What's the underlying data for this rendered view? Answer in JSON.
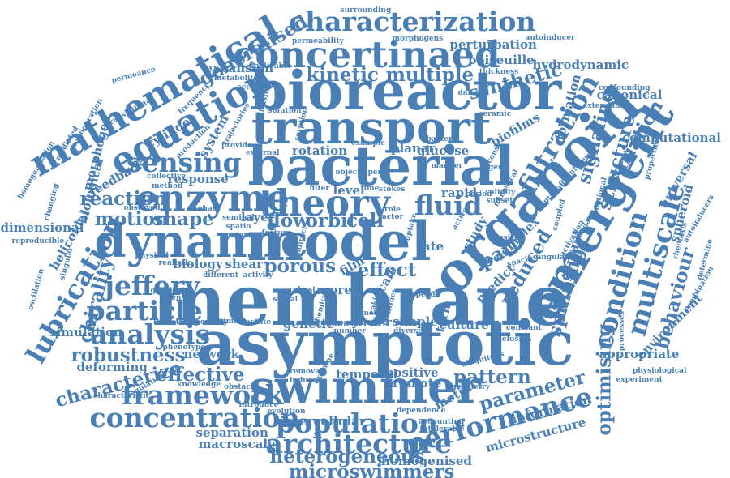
{
  "color": "#4a7fb5",
  "words": [
    {
      "text": "membrane",
      "weight": 9,
      "rot": 0
    },
    {
      "text": "asymptotic",
      "weight": 8,
      "rot": 0
    },
    {
      "text": "bioreactor",
      "weight": 7,
      "rot": 0
    },
    {
      "text": "bacterial",
      "weight": 7,
      "rot": 0
    },
    {
      "text": "organoid",
      "weight": 7,
      "rot": -45
    },
    {
      "text": "model",
      "weight": 7,
      "rot": 0
    },
    {
      "text": "transport",
      "weight": 6,
      "rot": 0
    },
    {
      "text": "dynamic",
      "weight": 6,
      "rot": 0
    },
    {
      "text": "emergent",
      "weight": 6,
      "rot": -60
    },
    {
      "text": "swimmer",
      "weight": 6,
      "rot": 0
    },
    {
      "text": "theory",
      "weight": 5,
      "rot": 0
    },
    {
      "text": "enzyme",
      "weight": 5,
      "rot": 0
    },
    {
      "text": "concertinaed",
      "weight": 5,
      "rot": 0
    },
    {
      "text": "equation",
      "weight": 5,
      "rot": -30
    },
    {
      "text": "mathematical",
      "weight": 5,
      "rot": -30
    },
    {
      "text": "characterization",
      "weight": 4,
      "rot": 0
    },
    {
      "text": "population",
      "weight": 4,
      "rot": 0
    },
    {
      "text": "condition",
      "weight": 4,
      "rot": -75
    },
    {
      "text": "multiscale",
      "weight": 4,
      "rot": -75
    },
    {
      "text": "filtration",
      "weight": 4,
      "rot": -60
    },
    {
      "text": "sensing",
      "weight": 4,
      "rot": 0
    },
    {
      "text": "particle",
      "weight": 4,
      "rot": 0
    },
    {
      "text": "analysis",
      "weight": 4,
      "rot": 0
    },
    {
      "text": "concentration",
      "weight": 4,
      "rot": 0
    },
    {
      "text": "architecture",
      "weight": 4,
      "rot": 0
    },
    {
      "text": "performance",
      "weight": 4,
      "rot": -15
    },
    {
      "text": "framework",
      "weight": 4,
      "rot": 0
    },
    {
      "text": "lubrication",
      "weight": 4,
      "rot": -60
    },
    {
      "text": "jeffery",
      "weight": 4,
      "rot": 0
    },
    {
      "text": "fluid",
      "weight": 4,
      "rot": 0
    },
    {
      "text": "flow",
      "weight": 3,
      "rot": 0
    },
    {
      "text": "kinetic",
      "weight": 3,
      "rot": 0
    },
    {
      "text": "multiple",
      "weight": 3,
      "rot": 0
    },
    {
      "text": "reaction",
      "weight": 3,
      "rot": 0
    },
    {
      "text": "motion",
      "weight": 3,
      "rot": 0
    },
    {
      "text": "shape",
      "weight": 3,
      "rot": 0
    },
    {
      "text": "orbit",
      "weight": 3,
      "rot": 0
    },
    {
      "text": "cell",
      "weight": 3,
      "rot": 0
    },
    {
      "text": "reduced",
      "weight": 3,
      "rot": -60
    },
    {
      "text": "structure",
      "weight": 3,
      "rot": -75
    },
    {
      "text": "generalised",
      "weight": 3,
      "rot": -30
    },
    {
      "text": "synthetic",
      "weight": 3,
      "rot": -15
    },
    {
      "text": "pattern",
      "weight": 3,
      "rot": 0
    },
    {
      "text": "parameter",
      "weight": 3,
      "rot": -15
    },
    {
      "text": "effective",
      "weight": 3,
      "rot": 0
    },
    {
      "text": "robustness",
      "weight": 3,
      "rot": 0
    },
    {
      "text": "heterogeneous",
      "weight": 3,
      "rot": 0
    },
    {
      "text": "microswimmers",
      "weight": 3,
      "rot": 0
    },
    {
      "text": "porous",
      "weight": 3,
      "rot": 0
    },
    {
      "text": "effect",
      "weight": 3,
      "rot": 0
    },
    {
      "text": "behaviour",
      "weight": 3,
      "rot": -75
    },
    {
      "text": "signaling",
      "weight": 3,
      "rot": -75
    },
    {
      "text": "optimising",
      "weight": 3,
      "rot": -90
    },
    {
      "text": "spinning",
      "weight": 3,
      "rot": -75
    },
    {
      "text": "chirality",
      "weight": 3,
      "rot": -75
    },
    {
      "text": "characterize",
      "weight": 3,
      "rot": -15
    },
    {
      "text": "part",
      "weight": 3,
      "rot": -30
    },
    {
      "text": "variation",
      "weight": 3,
      "rot": -60
    },
    {
      "text": "general",
      "weight": 2,
      "rot": -75
    },
    {
      "text": "motility",
      "weight": 2,
      "rot": -30
    },
    {
      "text": "perturbation",
      "weight": 2,
      "rot": 0
    },
    {
      "text": "poiseuille",
      "weight": 2,
      "rot": 0
    },
    {
      "text": "hydrodynamic",
      "weight": 2,
      "rot": 0
    },
    {
      "text": "morphogen",
      "weight": 2,
      "rot": -75
    },
    {
      "text": "biology",
      "weight": 2,
      "rot": 0
    },
    {
      "text": "shear",
      "weight": 2,
      "rot": 0
    },
    {
      "text": "biofilms",
      "weight": 2,
      "rot": -30
    },
    {
      "text": "rotation",
      "weight": 2,
      "rot": 0
    },
    {
      "text": "planar",
      "weight": 2,
      "rot": 0
    },
    {
      "text": "glucose",
      "weight": 2,
      "rot": 0
    },
    {
      "text": "rapid",
      "weight": 2,
      "rot": 0
    },
    {
      "text": "study",
      "weight": 2,
      "rot": -60
    },
    {
      "text": "simple",
      "weight": 2,
      "rot": 0
    },
    {
      "text": "culture",
      "weight": 2,
      "rot": 0
    },
    {
      "text": "order",
      "weight": 2,
      "rot": 0
    },
    {
      "text": "genetic",
      "weight": 2,
      "rot": 0
    },
    {
      "text": "network",
      "weight": 2,
      "rot": 0
    },
    {
      "text": "temporal",
      "weight": 2,
      "rot": 0
    },
    {
      "text": "information",
      "weight": 2,
      "rot": -15
    },
    {
      "text": "microstructure",
      "weight": 2,
      "rot": -15
    },
    {
      "text": "homogenised",
      "weight": 2,
      "rot": 0
    },
    {
      "text": "separation",
      "weight": 2,
      "rot": 0
    },
    {
      "text": "macroscale",
      "weight": 2,
      "rot": 0
    },
    {
      "text": "intercellular",
      "weight": 2,
      "rot": 0
    },
    {
      "text": "response",
      "weight": 2,
      "rot": 0
    },
    {
      "text": "system",
      "weight": 2,
      "rot": -60
    },
    {
      "text": "simulation",
      "weight": 2,
      "rot": 0
    },
    {
      "text": "helicoidal",
      "weight": 2,
      "rot": -60
    },
    {
      "text": "dimensional",
      "weight": 2,
      "rot": 0
    },
    {
      "text": "feedback",
      "weight": 2,
      "rot": -30
    },
    {
      "text": "biological",
      "weight": 2,
      "rot": -75
    },
    {
      "text": "spheroid",
      "weight": 2,
      "rot": -75
    },
    {
      "text": "computational",
      "weight": 2,
      "rot": 0
    },
    {
      "text": "appropriate",
      "weight": 2,
      "rot": 0
    },
    {
      "text": "environment",
      "weight": 2,
      "rot": -45
    },
    {
      "text": "canonical",
      "weight": 2,
      "rot": 0
    },
    {
      "text": "universal",
      "weight": 2,
      "rot": -60
    },
    {
      "text": "level",
      "weight": 2,
      "rot": 0
    },
    {
      "text": "layer",
      "weight": 2,
      "rot": 0
    },
    {
      "text": "scale",
      "weight": 2,
      "rot": -60
    },
    {
      "text": "term",
      "weight": 2,
      "rot": -75
    },
    {
      "text": "predict",
      "weight": 2,
      "rot": -45
    },
    {
      "text": "complex",
      "weight": 2,
      "rot": -45
    },
    {
      "text": "expansion",
      "weight": 2,
      "rot": 0
    },
    {
      "text": "cylinder",
      "weight": 2,
      "rot": -30
    },
    {
      "text": "deforming",
      "weight": 2,
      "rot": 0
    },
    {
      "text": "positive",
      "weight": 2,
      "rot": 0
    },
    {
      "text": "promote",
      "weight": 2,
      "rot": 0
    },
    {
      "text": "lactate",
      "weight": 1,
      "rot": 0
    },
    {
      "text": "porosity",
      "weight": 1,
      "rot": 0
    },
    {
      "text": "levitation",
      "weight": 1,
      "rot": 0
    },
    {
      "text": "more",
      "weight": 2,
      "rot": 0
    },
    {
      "text": "robust",
      "weight": 1,
      "rot": 0
    },
    {
      "text": "film",
      "weight": 2,
      "rot": -30
    },
    {
      "text": "rate",
      "weight": 2,
      "rot": 0
    },
    {
      "text": "formation",
      "weight": 2,
      "rot": -75
    },
    {
      "text": "rheotaxis",
      "weight": 1,
      "rot": -75
    },
    {
      "text": "combination",
      "weight": 1,
      "rot": -60
    },
    {
      "text": "determine",
      "weight": 1,
      "rot": -75
    },
    {
      "text": "autoinducers",
      "weight": 1,
      "rot": -60
    },
    {
      "text": "physiological",
      "weight": 1,
      "rot": 0
    },
    {
      "text": "experiment",
      "weight": 1,
      "rot": 0
    },
    {
      "text": "processes",
      "weight": 1,
      "rot": -90
    },
    {
      "text": "constant",
      "weight": 1,
      "rot": 0
    },
    {
      "text": "inclusion",
      "weight": 1,
      "rot": 0
    },
    {
      "text": "confounding",
      "weight": 1,
      "rot": 0
    },
    {
      "text": "extendable",
      "weight": 1,
      "rot": 0
    },
    {
      "text": "numerical",
      "weight": 1,
      "rot": -60
    },
    {
      "text": "viscous",
      "weight": 1,
      "rot": -60
    },
    {
      "text": "properties",
      "weight": 1,
      "rot": -75
    },
    {
      "text": "quantifies",
      "weight": 1,
      "rot": -45
    },
    {
      "text": "functional",
      "weight": 1,
      "rot": -75
    },
    {
      "text": "standard",
      "weight": 1,
      "rot": -60
    },
    {
      "text": "coupled",
      "weight": 1,
      "rot": -75
    },
    {
      "text": "optimal",
      "weight": 1,
      "rot": -45
    },
    {
      "text": "passive",
      "weight": 1,
      "rot": 0
    },
    {
      "text": "spacing",
      "weight": 1,
      "rot": -15
    },
    {
      "text": "angular",
      "weight": 1,
      "rot": 0
    },
    {
      "text": "activation",
      "weight": 1,
      "rot": -60
    },
    {
      "text": "oscillation",
      "weight": 1,
      "rot": -75
    },
    {
      "text": "singular",
      "weight": 1,
      "rot": -75
    },
    {
      "text": "reproducible",
      "weight": 1,
      "rot": 0
    },
    {
      "text": "homogenisation",
      "weight": 1,
      "rot": -60
    },
    {
      "text": "changing",
      "weight": 1,
      "rot": -75
    },
    {
      "text": "mediated",
      "weight": 1,
      "rot": -60
    },
    {
      "text": "configuration",
      "weight": 1,
      "rot": -60
    },
    {
      "text": "translational",
      "weight": 1,
      "rot": -30
    },
    {
      "text": "permeance",
      "weight": 1,
      "rot": -15
    },
    {
      "text": "permeability",
      "weight": 1,
      "rot": 0
    },
    {
      "text": "morphogens",
      "weight": 1,
      "rot": 0
    },
    {
      "text": "surrounding",
      "weight": 1,
      "rot": 0
    },
    {
      "text": "autoinducer",
      "weight": 1,
      "rot": 0
    },
    {
      "text": "applicable",
      "weight": 1,
      "rot": 0
    },
    {
      "text": "thickness",
      "weight": 1,
      "rot": 0
    },
    {
      "text": "dalwadi",
      "weight": 1,
      "rot": 0
    },
    {
      "text": "metabolite",
      "weight": 1,
      "rot": 0
    },
    {
      "text": "frequency",
      "weight": 1,
      "rot": -45
    },
    {
      "text": "diffusivity",
      "weight": 1,
      "rot": -75
    },
    {
      "text": "account",
      "weight": 1,
      "rot": 0
    },
    {
      "text": "trajectories",
      "weight": 1,
      "rot": -60
    },
    {
      "text": "production",
      "weight": 1,
      "rot": -45
    },
    {
      "text": "provide",
      "weight": 1,
      "rot": 0
    },
    {
      "text": "external",
      "weight": 1,
      "rot": 0
    },
    {
      "text": "sorption",
      "weight": 1,
      "rot": -75
    },
    {
      "text": "solution",
      "weight": 1,
      "rot": 0
    },
    {
      "text": "example",
      "weight": 1,
      "rot": 0
    },
    {
      "text": "ceramic",
      "weight": 1,
      "rot": 0
    },
    {
      "text": "bacteria",
      "weight": 1,
      "rot": 0
    },
    {
      "text": "manner",
      "weight": 1,
      "rot": 0
    },
    {
      "text": "gene",
      "weight": 1,
      "rot": 0
    },
    {
      "text": "validity",
      "weight": 1,
      "rot": 0
    },
    {
      "text": "subset",
      "weight": 1,
      "rot": 0
    },
    {
      "text": "period",
      "weight": 1,
      "rot": 0
    },
    {
      "text": "collective",
      "weight": 1,
      "rot": 0
    },
    {
      "text": "method",
      "weight": 1,
      "rot": 0
    },
    {
      "text": "domain",
      "weight": 1,
      "rot": 0
    },
    {
      "text": "observed",
      "weight": 1,
      "rot": 0
    },
    {
      "text": "physical",
      "weight": 1,
      "rot": 0
    },
    {
      "text": "realistic",
      "weight": 1,
      "rot": 0
    },
    {
      "text": "spatio",
      "weight": 1,
      "rot": 0
    },
    {
      "text": "context",
      "weight": 1,
      "rot": 0
    },
    {
      "text": "seminal",
      "weight": 1,
      "rot": 0
    },
    {
      "text": "feature",
      "weight": 1,
      "rot": 0
    },
    {
      "text": "filter",
      "weight": 1,
      "rot": 0
    },
    {
      "text": "time",
      "weight": 1,
      "rot": 0
    },
    {
      "text": "stokes",
      "weight": 1,
      "rot": 0
    },
    {
      "text": "object",
      "weight": 1,
      "rot": 0
    },
    {
      "text": "depend",
      "weight": 1,
      "rot": 0
    },
    {
      "text": "role",
      "weight": 1,
      "rot": 0
    },
    {
      "text": "factor",
      "weight": 1,
      "rot": 0
    },
    {
      "text": "indirect",
      "weight": 1,
      "rot": -75
    },
    {
      "text": "gradient",
      "weight": 1,
      "rot": 0
    },
    {
      "text": "density",
      "weight": 1,
      "rot": 0
    },
    {
      "text": "different",
      "weight": 1,
      "rot": 0
    },
    {
      "text": "activity",
      "weight": 1,
      "rot": 0
    },
    {
      "text": "primary",
      "weight": 1,
      "rot": 0
    },
    {
      "text": "signal",
      "weight": 1,
      "rot": 0
    },
    {
      "text": "phenotype",
      "weight": 1,
      "rot": 0
    },
    {
      "text": "regulation",
      "weight": 1,
      "rot": -30
    },
    {
      "text": "knowledge",
      "weight": 1,
      "rot": 0
    },
    {
      "text": "obstacle",
      "weight": 1,
      "rot": 0
    },
    {
      "text": "characteristic",
      "weight": 1,
      "rot": 0
    },
    {
      "text": "introduce",
      "weight": 1,
      "rot": 0
    },
    {
      "text": "induced",
      "weight": 1,
      "rot": 0
    },
    {
      "text": "removal",
      "weight": 1,
      "rot": 0
    },
    {
      "text": "examine",
      "weight": 1,
      "rot": -60
    },
    {
      "text": "evolution",
      "weight": 1,
      "rot": 0
    },
    {
      "text": "yawing",
      "weight": 1,
      "rot": 0
    },
    {
      "text": "number",
      "weight": 1,
      "rot": 0
    },
    {
      "text": "chemical",
      "weight": 1,
      "rot": -75
    },
    {
      "text": "caking",
      "weight": 1,
      "rot": -75
    },
    {
      "text": "identifies",
      "weight": 1,
      "rot": -75
    },
    {
      "text": "metric",
      "weight": 1,
      "rot": 0
    },
    {
      "text": "diverse",
      "weight": 1,
      "rot": 0
    },
    {
      "text": "speed",
      "weight": 1,
      "rot": 0
    },
    {
      "text": "dependence",
      "weight": 1,
      "rot": 0
    },
    {
      "text": "accounting",
      "weight": 1,
      "rot": 0
    },
    {
      "text": "intolerable",
      "weight": 1,
      "rot": 0
    },
    {
      "text": "ubiquitous",
      "weight": 1,
      "rot": -15
    },
    {
      "text": "geometry",
      "weight": 1,
      "rot": 0
    },
    {
      "text": "uptake",
      "weight": 1,
      "rot": -75
    },
    {
      "text": "active",
      "weight": 1,
      "rot": -60
    }
  ]
}
